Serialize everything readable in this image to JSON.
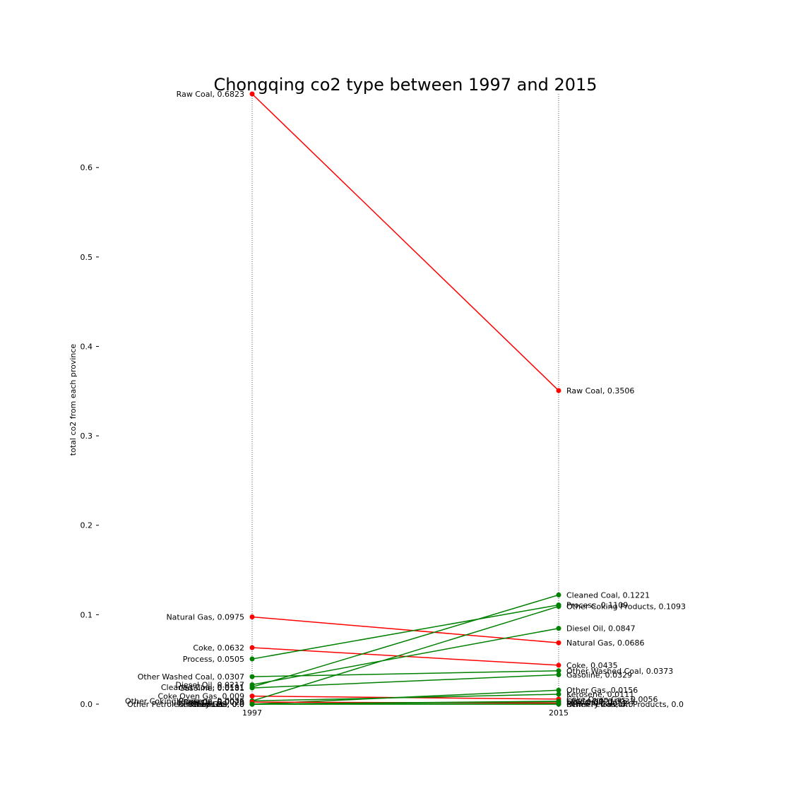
{
  "chart_data": {
    "type": "line",
    "title": "Chongqing co2 type between 1997 and 2015",
    "ylabel": "total co2 from each province",
    "xlabel": "",
    "x": [
      "1997",
      "2015"
    ],
    "ylim": [
      0.0,
      0.6823
    ],
    "yticks": [
      "0.0",
      "0.1",
      "0.2",
      "0.3",
      "0.4",
      "0.5",
      "0.6"
    ],
    "grid": false,
    "legend": "none",
    "colors": {
      "decrease": "#ff0000",
      "increase": "#008000",
      "guide": "#555555"
    },
    "series": [
      {
        "name": "Raw Coal",
        "values": [
          0.6823,
          0.3506
        ],
        "left_label": "Raw Coal, 0.6823",
        "right_label": "Raw Coal, 0.3506"
      },
      {
        "name": "Natural Gas",
        "values": [
          0.0975,
          0.0686
        ],
        "left_label": "Natural Gas, 0.0975",
        "right_label": "Natural Gas, 0.0686"
      },
      {
        "name": "Coke",
        "values": [
          0.0632,
          0.0435
        ],
        "left_label": "Coke, 0.0632",
        "right_label": "Coke, 0.0435"
      },
      {
        "name": "Process",
        "values": [
          0.0505,
          0.1109
        ],
        "left_label": "Process, 0.0505",
        "right_label": "Process, 0.1109"
      },
      {
        "name": "Other Washed Coal",
        "values": [
          0.0307,
          0.0373
        ],
        "left_label": "Other Washed Coal, 0.0307",
        "right_label": "Other Washed Coal, 0.0373"
      },
      {
        "name": "Diesel Oil",
        "values": [
          0.0217,
          0.0847
        ],
        "left_label": "Diesel Oil, 0.0217",
        "right_label": "Diesel Oil, 0.0847"
      },
      {
        "name": "Cleaned Coal",
        "values": [
          0.0191,
          0.1221
        ],
        "left_label": "Cleaned Coal, 0.0191",
        "right_label": "Cleaned Coal, 0.1221"
      },
      {
        "name": "Gasoline",
        "values": [
          0.0181,
          0.0329
        ],
        "left_label": "Gasoline, 0.0181",
        "right_label": "Gasoline, 0.0329"
      },
      {
        "name": "Coke Oven Gas",
        "values": [
          0.009,
          0.0056
        ],
        "left_label": "Coke Oven Gas, 0.009",
        "right_label": "Coke Oven Gas, 0.0056"
      },
      {
        "name": "Other Coking Products",
        "values": [
          0.0036,
          0.1093
        ],
        "left_label": "Other Coking Products, 0.0036",
        "right_label": "Other Coking Products, 0.1093"
      },
      {
        "name": "Kerosene",
        "values": [
          0.0036,
          0.0111
        ],
        "left_label": "Kerosene, 0.0036",
        "right_label": "Kerosene, 0.0111"
      },
      {
        "name": "Other Gas",
        "values": [
          0.0,
          0.0156
        ],
        "left_label": "Other Gas, 0.0",
        "right_label": "Other Gas, 0.0156"
      },
      {
        "name": "Fuel Oil",
        "values": [
          0.0023,
          0.0012
        ],
        "left_label": "Fuel Oil, 0.0023",
        "right_label": "Fuel Oil, 0.0012"
      },
      {
        "name": "Crude Oil",
        "values": [
          0.0,
          0.0033
        ],
        "left_label": "Crude Oil, 0.0",
        "right_label": "Crude Oil, 0.0033"
      },
      {
        "name": "LPG",
        "values": [
          0.0,
          0.0027
        ],
        "left_label": "LPG, 0.0",
        "right_label": "LPG, 0.0027"
      },
      {
        "name": "Refinery Gas",
        "values": [
          0.0,
          0.0
        ],
        "left_label": "Refinery Gas, 0.0",
        "right_label": "Refinery Gas, 0.0"
      },
      {
        "name": "Other Petroleum Products",
        "values": [
          0.0,
          0.0
        ],
        "left_label": "Other Petroleum Products, 0.0",
        "right_label": "Other Petroleum Products, 0.0"
      }
    ]
  }
}
